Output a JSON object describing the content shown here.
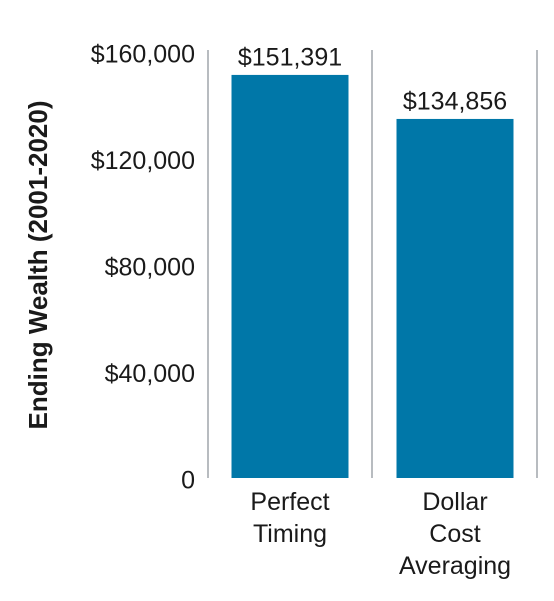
{
  "chart_data": {
    "type": "bar",
    "y_axis_label": "Ending Wealth (2001-2020)",
    "categories": [
      "Perfect Timing",
      "Dollar Cost Averaging"
    ],
    "values": [
      151391,
      134856
    ],
    "value_labels": [
      "$151,391",
      "$134,856"
    ],
    "color": "#0077a8",
    "ylim": [
      0,
      160000
    ],
    "yticks": [
      0,
      {
        "value": 40000,
        "label": "$40,000"
      },
      {
        "value": 80000,
        "label": "$80,000"
      },
      {
        "value": 120000,
        "label": "$120,000"
      },
      {
        "value": 160000,
        "label": "$160,000"
      }
    ],
    "grid": false
  }
}
